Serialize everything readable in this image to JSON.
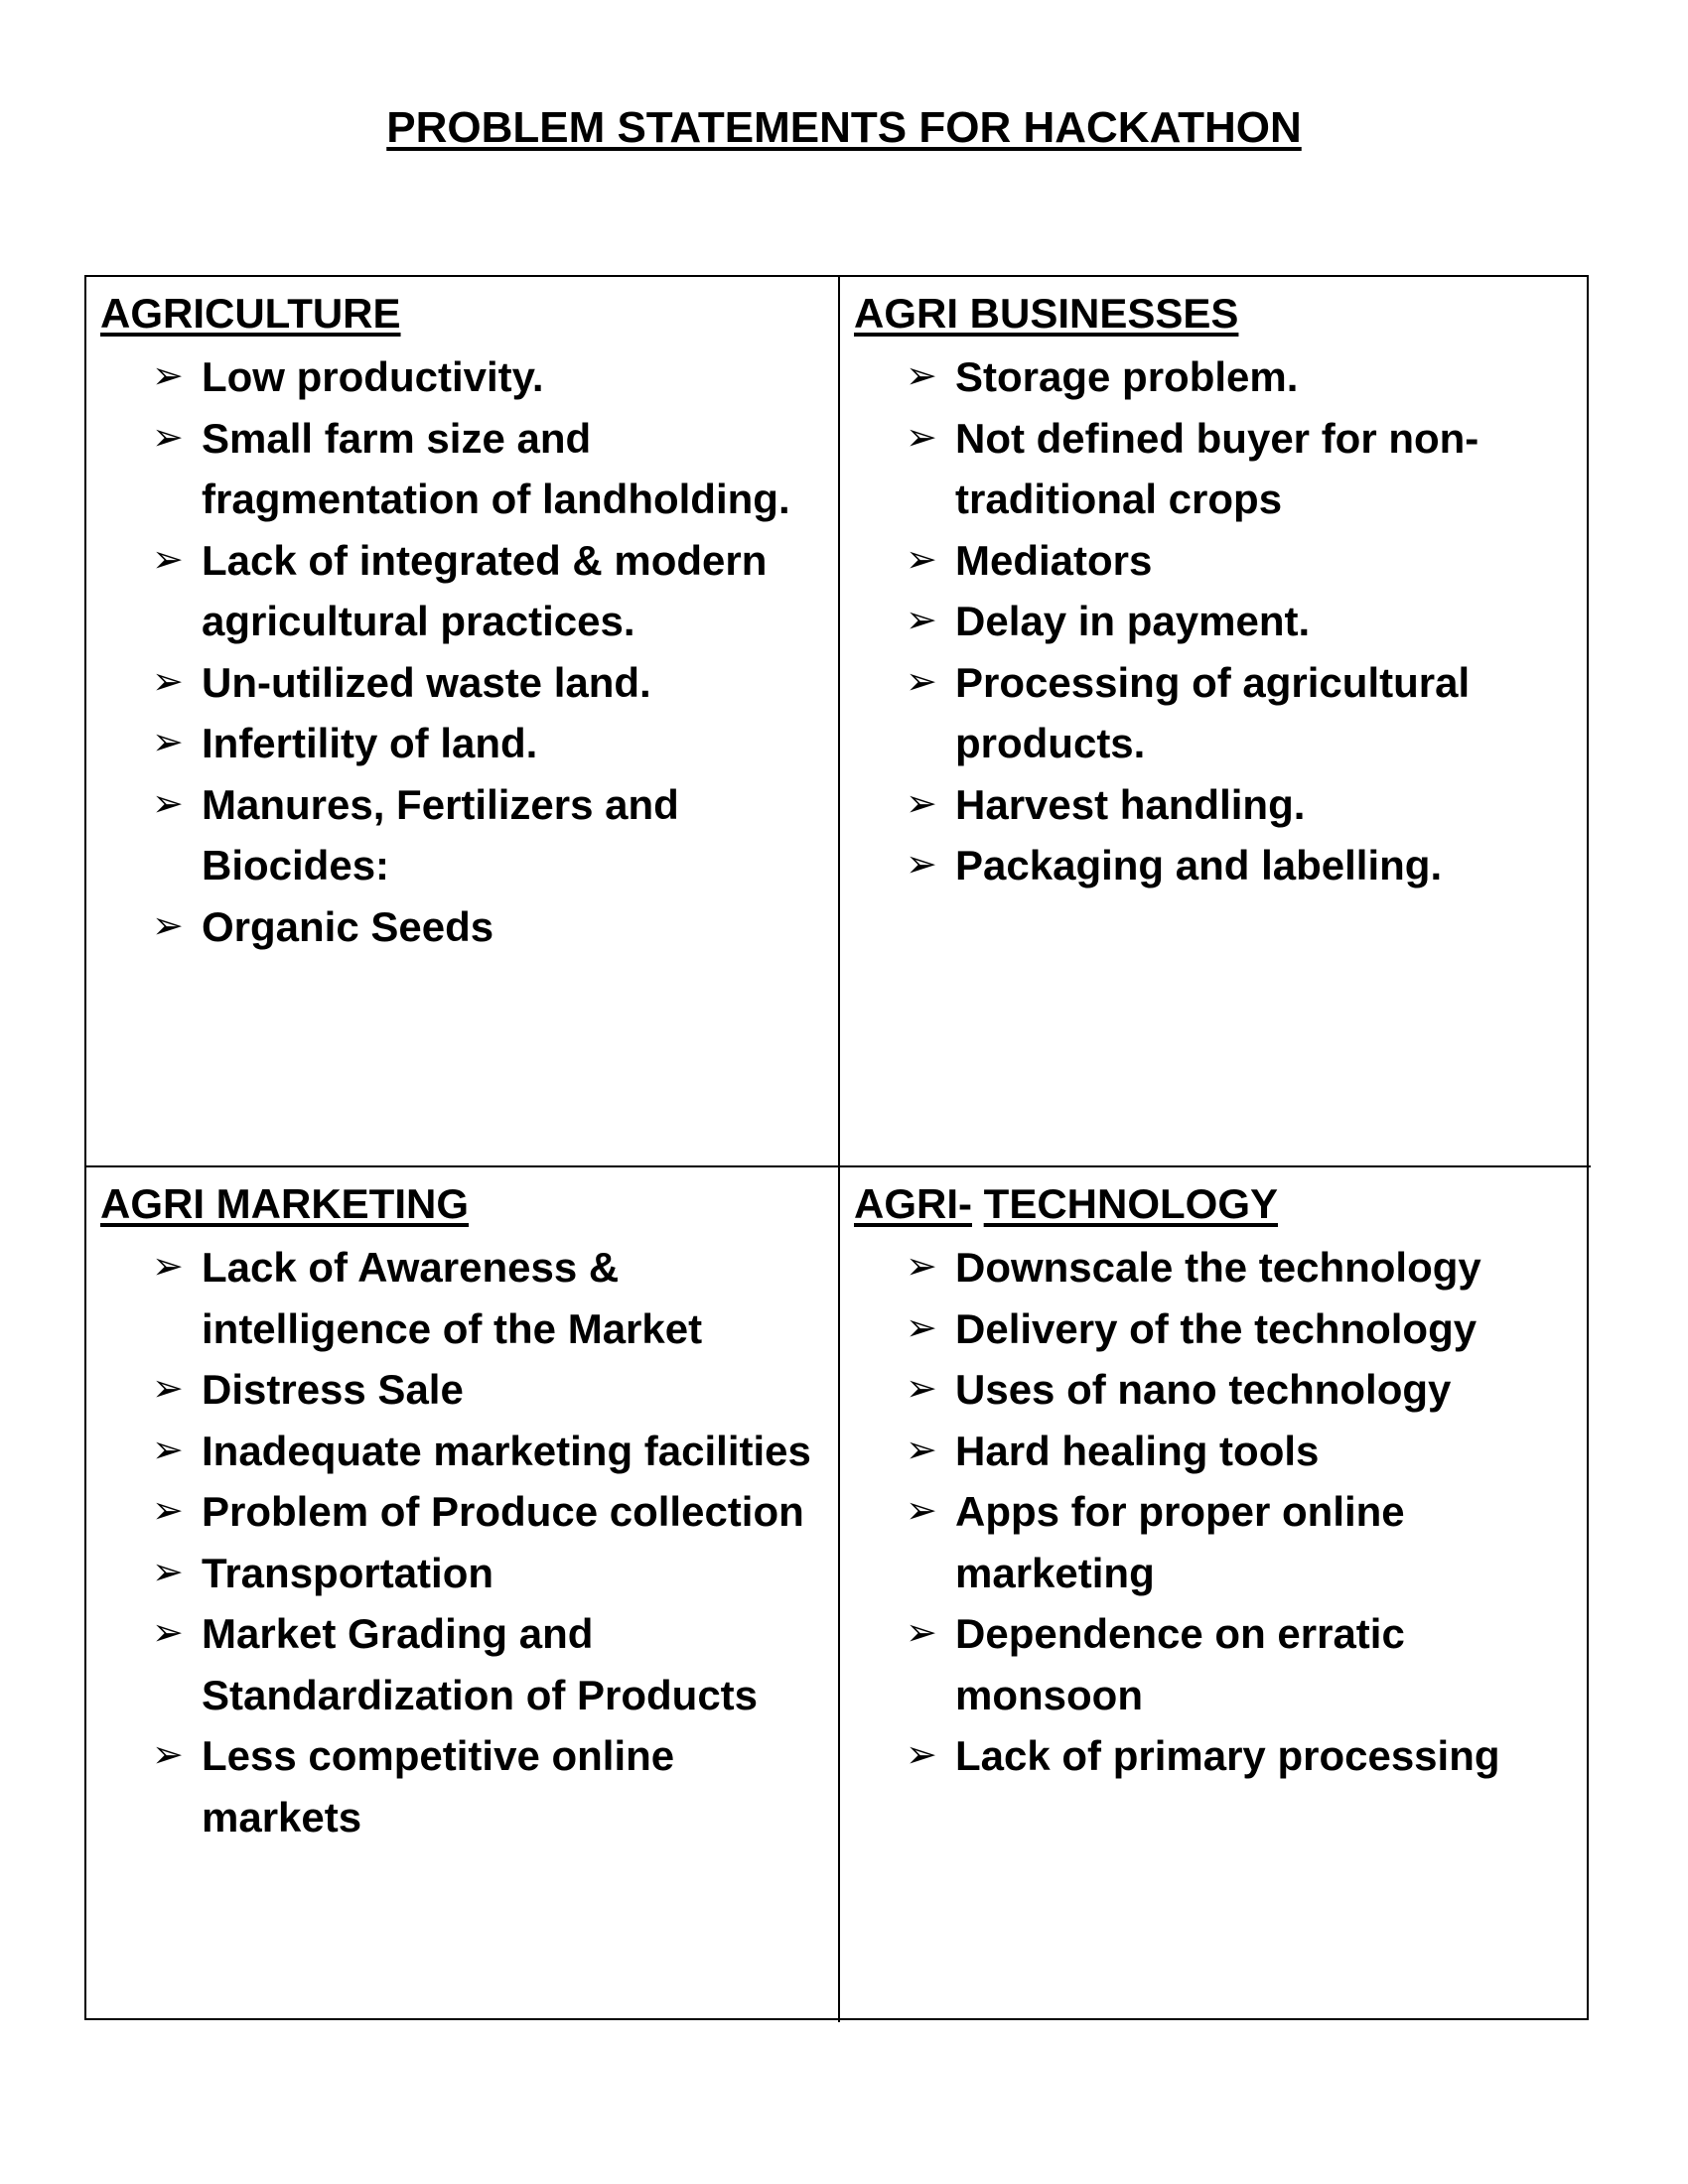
{
  "title": "PROBLEM STATEMENTS FOR HACKATHON",
  "bullet_glyph": "➢",
  "sections": {
    "agriculture": {
      "heading": "AGRICULTURE",
      "items": [
        "Low productivity.",
        "Small farm size and fragmentation of landholding.",
        "Lack of integrated & modern agricultural practices.",
        "Un-utilized waste land.",
        "Infertility of land.",
        "Manures, Fertilizers and Biocides:",
        "Organic Seeds"
      ]
    },
    "agri_businesses": {
      "heading": "AGRI BUSINESSES",
      "items": [
        "Storage problem.",
        "Not defined buyer for non-traditional crops",
        "Mediators",
        "Delay in payment.",
        "Processing of agricultural products.",
        "Harvest handling.",
        "Packaging and labelling."
      ]
    },
    "agri_marketing": {
      "heading": "AGRI MARKETING",
      "items": [
        "Lack of Awareness & intelligence of the Market",
        "Distress Sale",
        "Inadequate marketing facilities",
        "Problem of Produce collection",
        "Transportation",
        "Market Grading and Standardization of Products",
        "Less competitive online markets"
      ]
    },
    "agri_technology": {
      "heading_prefix": "AGRI-",
      "heading_rest": "TECHNOLOGY",
      "items": [
        "Downscale the technology",
        "Delivery of the technology",
        "Uses of nano technology",
        "Hard healing tools",
        "Apps for proper online marketing",
        "Dependence on erratic monsoon",
        "Lack of primary processing"
      ]
    }
  }
}
